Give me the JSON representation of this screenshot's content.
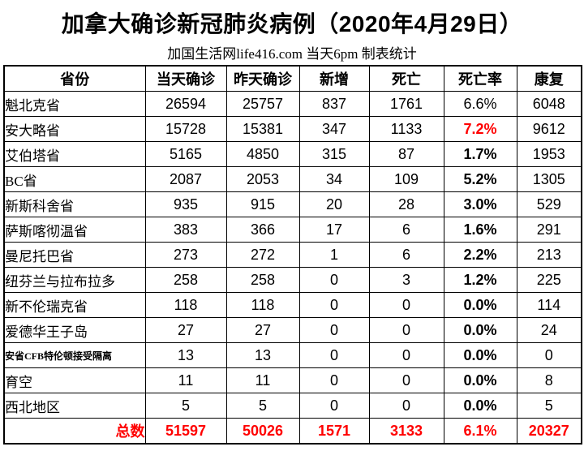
{
  "title": "加拿大确诊新冠肺炎病例（2020年4月29日）",
  "subtitle": "加国生活网life416.com 当天6pm 制表统计",
  "colors": {
    "accent_red": "#FF0000",
    "text": "#000000",
    "border": "#000000",
    "background": "#FFFFFF"
  },
  "table": {
    "headers": [
      "省份",
      "当天确诊",
      "昨天确诊",
      "新增",
      "死亡",
      "死亡率",
      "康复"
    ],
    "rows": [
      {
        "province": "魁北克省",
        "today": "26594",
        "yesterday": "25757",
        "new_cases": "837",
        "deaths": "1761",
        "death_rate": "6.6%",
        "recovered": "6048",
        "rate_style": "normal",
        "small_font": false
      },
      {
        "province": "安大略省",
        "today": "15728",
        "yesterday": "15381",
        "new_cases": "347",
        "deaths": "1133",
        "death_rate": "7.2%",
        "recovered": "9612",
        "rate_style": "red-bold",
        "small_font": false
      },
      {
        "province": "艾伯塔省",
        "today": "5165",
        "yesterday": "4850",
        "new_cases": "315",
        "deaths": "87",
        "death_rate": "1.7%",
        "recovered": "1953",
        "rate_style": "bold",
        "small_font": false
      },
      {
        "province": "BC省",
        "today": "2087",
        "yesterday": "2053",
        "new_cases": "34",
        "deaths": "109",
        "death_rate": "5.2%",
        "recovered": "1305",
        "rate_style": "bold",
        "small_font": false
      },
      {
        "province": "新斯科舍省",
        "today": "935",
        "yesterday": "915",
        "new_cases": "20",
        "deaths": "28",
        "death_rate": "3.0%",
        "recovered": "529",
        "rate_style": "bold",
        "small_font": false
      },
      {
        "province": "萨斯喀彻温省",
        "today": "383",
        "yesterday": "366",
        "new_cases": "17",
        "deaths": "6",
        "death_rate": "1.6%",
        "recovered": "291",
        "rate_style": "bold",
        "small_font": false
      },
      {
        "province": "曼尼托巴省",
        "today": "273",
        "yesterday": "272",
        "new_cases": "1",
        "deaths": "6",
        "death_rate": "2.2%",
        "recovered": "213",
        "rate_style": "bold",
        "small_font": false
      },
      {
        "province": "纽芬兰与拉布拉多",
        "today": "258",
        "yesterday": "258",
        "new_cases": "0",
        "deaths": "3",
        "death_rate": "1.2%",
        "recovered": "225",
        "rate_style": "bold",
        "small_font": false
      },
      {
        "province": "新不伦瑞克省",
        "today": "118",
        "yesterday": "118",
        "new_cases": "0",
        "deaths": "0",
        "death_rate": "0.0%",
        "recovered": "114",
        "rate_style": "bold",
        "small_font": false
      },
      {
        "province": "爱德华王子岛",
        "today": "27",
        "yesterday": "27",
        "new_cases": "0",
        "deaths": "0",
        "death_rate": "0.0%",
        "recovered": "24",
        "rate_style": "bold",
        "small_font": false
      },
      {
        "province": "安省CFB特伦顿接受隔离",
        "today": "13",
        "yesterday": "13",
        "new_cases": "0",
        "deaths": "0",
        "death_rate": "0.0%",
        "recovered": "0",
        "rate_style": "bold",
        "small_font": true
      },
      {
        "province": "育空",
        "today": "11",
        "yesterday": "11",
        "new_cases": "0",
        "deaths": "0",
        "death_rate": "0.0%",
        "recovered": "8",
        "rate_style": "bold",
        "small_font": false
      },
      {
        "province": "西北地区",
        "today": "5",
        "yesterday": "5",
        "new_cases": "0",
        "deaths": "0",
        "death_rate": "0.0%",
        "recovered": "5",
        "rate_style": "bold",
        "small_font": false
      }
    ],
    "total": {
      "label": "总数",
      "today": "51597",
      "yesterday": "50026",
      "new_cases": "1571",
      "deaths": "3133",
      "death_rate": "6.1%",
      "recovered": "20327"
    }
  },
  "chart_data": {
    "type": "table",
    "title": "加拿大确诊新冠肺炎病例（2020年4月29日）",
    "subtitle": "加国生活网life416.com 当天6pm 制表统计",
    "columns": [
      "省份",
      "当天确诊",
      "昨天确诊",
      "新增",
      "死亡",
      "死亡率",
      "康复"
    ],
    "rows": [
      [
        "魁北克省",
        26594,
        25757,
        837,
        1761,
        "6.6%",
        6048
      ],
      [
        "安大略省",
        15728,
        15381,
        347,
        1133,
        "7.2%",
        9612
      ],
      [
        "艾伯塔省",
        5165,
        4850,
        315,
        87,
        "1.7%",
        1953
      ],
      [
        "BC省",
        2087,
        2053,
        34,
        109,
        "5.2%",
        1305
      ],
      [
        "新斯科舍省",
        935,
        915,
        20,
        28,
        "3.0%",
        529
      ],
      [
        "萨斯喀彻温省",
        383,
        366,
        17,
        6,
        "1.6%",
        291
      ],
      [
        "曼尼托巴省",
        273,
        272,
        1,
        6,
        "2.2%",
        213
      ],
      [
        "纽芬兰与拉布拉多",
        258,
        258,
        0,
        3,
        "1.2%",
        225
      ],
      [
        "新不伦瑞克省",
        118,
        118,
        0,
        0,
        "0.0%",
        114
      ],
      [
        "爱德华王子岛",
        27,
        27,
        0,
        0,
        "0.0%",
        24
      ],
      [
        "安省CFB特伦顿接受隔离",
        13,
        13,
        0,
        0,
        "0.0%",
        0
      ],
      [
        "育空",
        11,
        11,
        0,
        0,
        "0.0%",
        8
      ],
      [
        "西北地区",
        5,
        5,
        0,
        0,
        "0.0%",
        5
      ]
    ],
    "total_row": [
      "总数",
      51597,
      50026,
      1571,
      3133,
      "6.1%",
      20327
    ]
  }
}
